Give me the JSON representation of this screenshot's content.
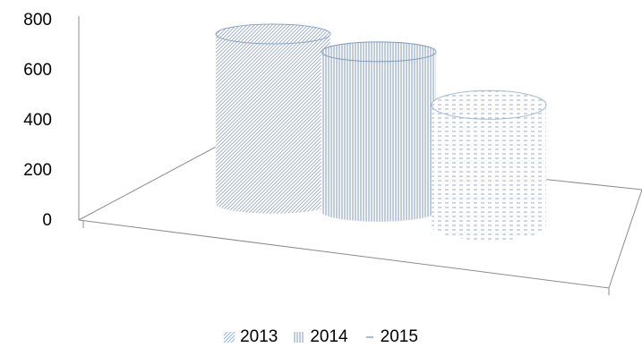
{
  "chart_data": {
    "type": "bar",
    "style": "3d-cylinder",
    "categories": [
      "2013",
      "2014",
      "2015"
    ],
    "values": [
      700,
      660,
      500
    ],
    "ylim": [
      0,
      800
    ],
    "yticks": [
      "0",
      "200",
      "400",
      "600",
      "800"
    ],
    "legend": {
      "position": "bottom",
      "entries": [
        "2013",
        "2014",
        "2015"
      ]
    },
    "colors": {
      "pattern": "#8fa9cc",
      "top_2013": "#8ea5c8",
      "top_2014": "#7f99c2",
      "top_2015": "#a8bbd6",
      "axis": "#8c8c8c"
    }
  }
}
